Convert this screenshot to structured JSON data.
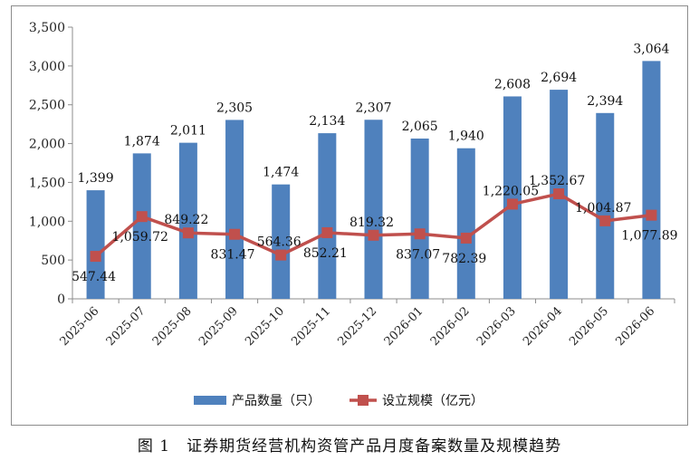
{
  "figure_caption": "图 1　证券期货经营机构资管产品月度备案数量及规模趋势",
  "chart_data": {
    "type": "bar",
    "title": "",
    "xlabel": "",
    "ylabel": "",
    "ylim": [
      0,
      3500
    ],
    "yticks": [
      0,
      500,
      1000,
      1500,
      2000,
      2500,
      3000,
      3500
    ],
    "ytick_labels": [
      "0",
      "500",
      "1,000",
      "1,500",
      "2,000",
      "2,500",
      "3,000",
      "3,500"
    ],
    "grid": false,
    "legend_position": "bottom",
    "categories": [
      "2025-06",
      "2025-07",
      "2025-08",
      "2025-09",
      "2025-10",
      "2025-11",
      "2025-12",
      "2026-01",
      "2026-02",
      "2026-03",
      "2026-04",
      "2026-05",
      "2026-06"
    ],
    "series": [
      {
        "name": "产品数量（只）",
        "kind": "bar",
        "color": "#4f81bd",
        "values": [
          1399,
          1874,
          2011,
          2305,
          1474,
          2134,
          2307,
          2065,
          1940,
          2608,
          2694,
          2394,
          3064
        ],
        "labels": [
          "1,399",
          "1,874",
          "2,011",
          "2,305",
          "1,474",
          "2,134",
          "2,307",
          "2,065",
          "1,940",
          "2,608",
          "2,694",
          "2,394",
          "3,064"
        ]
      },
      {
        "name": "设立规模（亿元）",
        "kind": "line",
        "color": "#c0504d",
        "values": [
          547.44,
          1059.72,
          849.22,
          831.47,
          564.36,
          852.21,
          819.32,
          837.07,
          782.39,
          1220.05,
          1352.67,
          1004.87,
          1077.89
        ],
        "labels": [
          "547.44",
          "1,059.72",
          "849.22",
          "831.47",
          "564.36",
          "852.21",
          "819.32",
          "837.07",
          "782.39",
          "1,220.05",
          "1,352.67",
          "1,004.87",
          "1,077.89"
        ]
      }
    ]
  }
}
